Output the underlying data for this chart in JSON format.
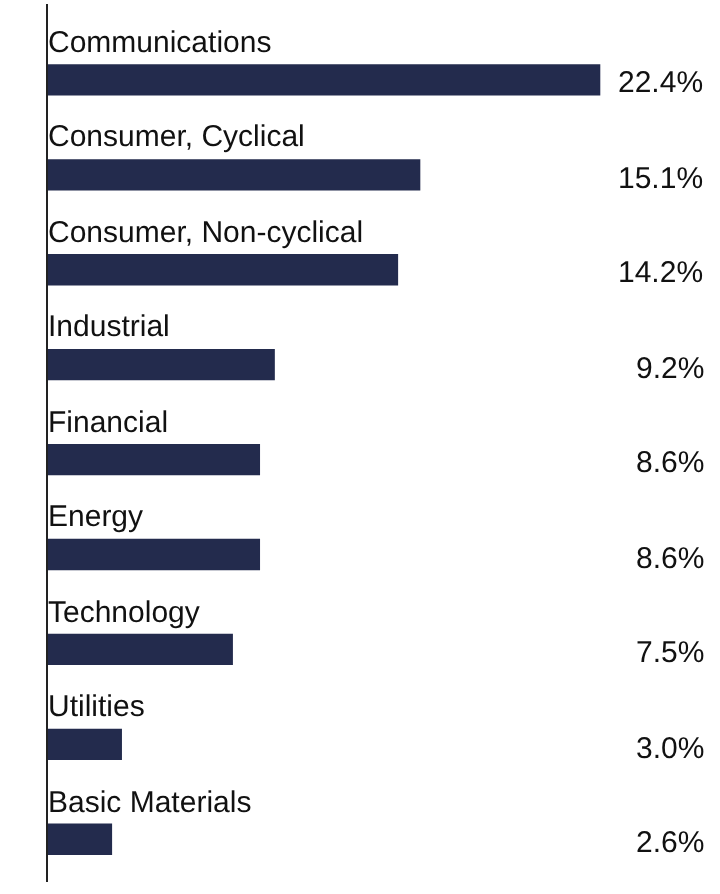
{
  "chart_data": {
    "type": "bar",
    "orientation": "horizontal",
    "categories": [
      "Communications",
      "Consumer, Cyclical",
      "Consumer, Non-cyclical",
      "Industrial",
      "Financial",
      "Energy",
      "Technology",
      "Utilities",
      "Basic Materials"
    ],
    "values": [
      22.4,
      15.1,
      14.2,
      9.2,
      8.6,
      8.6,
      7.5,
      3.0,
      2.6
    ],
    "value_labels": [
      "22.4%",
      "15.1%",
      "14.2%",
      "9.2%",
      "8.6%",
      "8.6%",
      "7.5%",
      "3.0%",
      "2.6%"
    ],
    "color": "#232b4d"
  }
}
